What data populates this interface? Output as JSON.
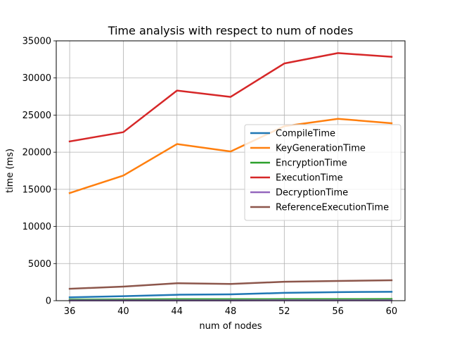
{
  "chart_data": {
    "type": "line",
    "title": "Time analysis with respect to num of nodes",
    "xlabel": "num of nodes",
    "ylabel": "time (ms)",
    "x": [
      36,
      40,
      44,
      48,
      52,
      56,
      60
    ],
    "x_ticks": [
      "36",
      "40",
      "44",
      "48",
      "52",
      "56",
      "60"
    ],
    "y_ticks": [
      "0",
      "5000",
      "10000",
      "15000",
      "20000",
      "25000",
      "30000",
      "35000"
    ],
    "xlim": [
      35,
      61
    ],
    "ylim": [
      0,
      35000
    ],
    "grid": true,
    "legend_position": "center-right",
    "series": [
      {
        "name": "CompileTime",
        "color": "#1f77b4",
        "values": [
          450,
          600,
          800,
          850,
          1050,
          1150,
          1200
        ]
      },
      {
        "name": "KeyGenerationTime",
        "color": "#ff7f0e",
        "values": [
          14500,
          16850,
          21100,
          20100,
          23500,
          24500,
          23900
        ]
      },
      {
        "name": "EncryptionTime",
        "color": "#2ca02c",
        "values": [
          150,
          170,
          200,
          200,
          210,
          210,
          220
        ]
      },
      {
        "name": "ExecutionTime",
        "color": "#d62728",
        "values": [
          21450,
          22700,
          28300,
          27450,
          31950,
          33350,
          32850
        ]
      },
      {
        "name": "DecryptionTime",
        "color": "#9467bd",
        "values": [
          30,
          35,
          40,
          40,
          45,
          45,
          50
        ]
      },
      {
        "name": "ReferenceExecutionTime",
        "color": "#8c564b",
        "values": [
          1600,
          1900,
          2350,
          2250,
          2550,
          2650,
          2750
        ]
      }
    ]
  }
}
